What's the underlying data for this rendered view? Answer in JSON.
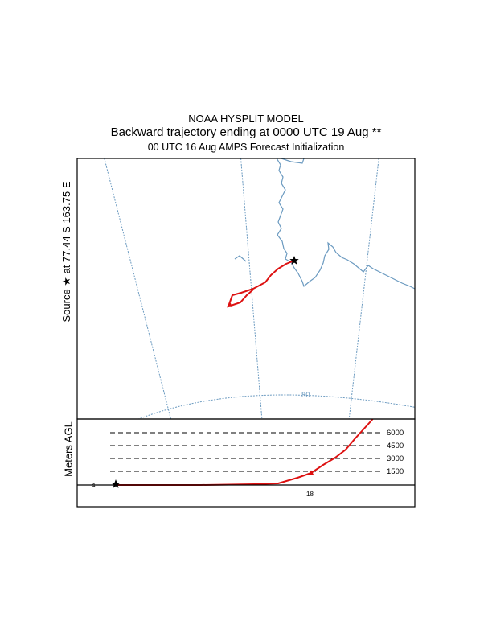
{
  "header": {
    "model_title": "NOAA HYSPLIT MODEL",
    "trajectory_title": "Backward trajectory ending at 0000 UTC 19 Aug **",
    "init_title": "00 UTC 16 Aug    AMPS  Forecast Initialization"
  },
  "map": {
    "source_label": "Source ★ at  77.44 S  163.75 E",
    "latitude_label": "80",
    "colors": {
      "coastline": "#6b9ac0",
      "trajectory": "#dd1111",
      "grid": "#6b9ac0"
    },
    "source_marker_icon": "star-icon"
  },
  "profile": {
    "axis_label": "Meters AGL",
    "height_levels": [
      "6000",
      "4500",
      "3000",
      "1500"
    ],
    "time_labels": {
      "left": "4",
      "mid": "18"
    }
  }
}
